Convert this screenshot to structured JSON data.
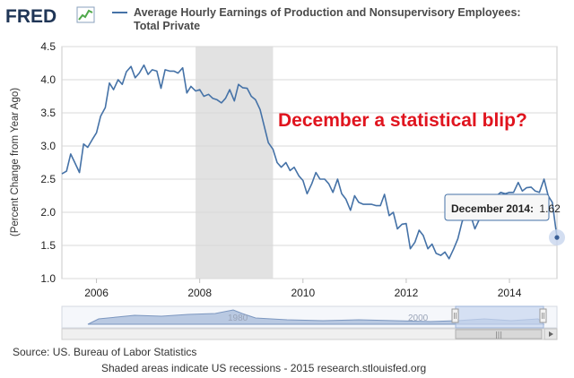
{
  "logo": {
    "text": "FRED"
  },
  "legend": {
    "line1": "Average Hourly Earnings of Production and Nonsupervisory Employees:",
    "line2": "Total Private"
  },
  "chart_data": {
    "type": "line",
    "title": "Average Hourly Earnings of Production and Nonsupervisory Employees: Total Private",
    "ylabel": "(Percent Change from Year Ago)",
    "xlabel": "",
    "ylim": [
      1.0,
      4.5
    ],
    "xlim": [
      2005.33,
      2014.92
    ],
    "yticks": [
      "1.0",
      "1.5",
      "2.0",
      "2.5",
      "3.0",
      "3.5",
      "4.0",
      "4.5"
    ],
    "xticks": [
      "2006",
      "2008",
      "2010",
      "2012",
      "2014"
    ],
    "grid": true,
    "line_color": "#4572a7",
    "recession": {
      "start": 2007.92,
      "end": 2009.42
    },
    "series": [
      {
        "x": [
          2005.33,
          2005.42,
          2005.5,
          2005.58,
          2005.67,
          2005.75,
          2005.83,
          2005.92,
          2006.0,
          2006.08,
          2006.17,
          2006.25,
          2006.33,
          2006.42,
          2006.5,
          2006.58,
          2006.67,
          2006.75,
          2006.83,
          2006.92,
          2007.0,
          2007.08,
          2007.17,
          2007.25,
          2007.33,
          2007.42,
          2007.5,
          2007.58,
          2007.67,
          2007.75,
          2007.83,
          2007.92,
          2008.0,
          2008.08,
          2008.17,
          2008.25,
          2008.33,
          2008.42,
          2008.5,
          2008.58,
          2008.67,
          2008.75,
          2008.83,
          2008.92,
          2009.0,
          2009.08,
          2009.17,
          2009.25,
          2009.33,
          2009.42,
          2009.5,
          2009.58,
          2009.67,
          2009.75,
          2009.83,
          2009.92,
          2010.0,
          2010.08,
          2010.17,
          2010.25,
          2010.33,
          2010.42,
          2010.5,
          2010.58,
          2010.67,
          2010.75,
          2010.83,
          2010.92,
          2011.0,
          2011.08,
          2011.17,
          2011.25,
          2011.33,
          2011.42,
          2011.5,
          2011.58,
          2011.67,
          2011.75,
          2011.83,
          2011.92,
          2012.0,
          2012.08,
          2012.17,
          2012.25,
          2012.33,
          2012.42,
          2012.5,
          2012.58,
          2012.67,
          2012.75,
          2012.83,
          2012.92,
          2013.0,
          2013.08,
          2013.17,
          2013.25,
          2013.33,
          2013.42,
          2013.5,
          2013.58,
          2013.67,
          2013.75,
          2013.83,
          2013.92,
          2014.0,
          2014.08,
          2014.17,
          2014.25,
          2014.33,
          2014.42,
          2014.5,
          2014.58,
          2014.67,
          2014.75,
          2014.83,
          2014.92
        ],
        "y": [
          2.58,
          2.62,
          2.88,
          2.75,
          2.6,
          3.03,
          2.98,
          3.1,
          3.2,
          3.45,
          3.58,
          3.95,
          3.85,
          4.0,
          3.93,
          4.12,
          4.2,
          4.03,
          4.1,
          4.22,
          4.08,
          4.15,
          4.13,
          3.87,
          4.15,
          4.13,
          4.13,
          4.1,
          4.18,
          3.8,
          3.9,
          3.83,
          3.85,
          3.75,
          3.78,
          3.72,
          3.7,
          3.65,
          3.72,
          3.85,
          3.68,
          3.93,
          3.88,
          3.87,
          3.75,
          3.7,
          3.55,
          3.3,
          3.05,
          2.95,
          2.75,
          2.68,
          2.75,
          2.63,
          2.68,
          2.55,
          2.48,
          2.28,
          2.43,
          2.6,
          2.5,
          2.5,
          2.43,
          2.3,
          2.5,
          2.28,
          2.2,
          2.03,
          2.25,
          2.15,
          2.12,
          2.12,
          2.12,
          2.1,
          2.1,
          2.27,
          1.95,
          2.0,
          1.75,
          1.82,
          1.83,
          1.45,
          1.55,
          1.73,
          1.65,
          1.45,
          1.52,
          1.38,
          1.35,
          1.4,
          1.3,
          1.45,
          1.6,
          1.85,
          2.05,
          1.95,
          1.75,
          1.9,
          2.05,
          2.2,
          2.15,
          2.25,
          2.3,
          2.28,
          2.3,
          2.3,
          2.45,
          2.32,
          2.37,
          2.38,
          2.32,
          2.3,
          2.5,
          2.25,
          2.15,
          1.62
        ]
      }
    ],
    "annotations": [
      {
        "text": "December a statistical blip?"
      }
    ],
    "tooltip": {
      "label": "December 2014:",
      "value": "1.62"
    }
  },
  "navigator": {
    "labels": [
      "1980",
      "2000"
    ],
    "handle_glyph": "|||"
  },
  "footer": {
    "source": "Source: US. Bureau of Labor Statistics",
    "note": "Shaded areas indicate US recessions - 2015 research.stlouisfed.org"
  }
}
